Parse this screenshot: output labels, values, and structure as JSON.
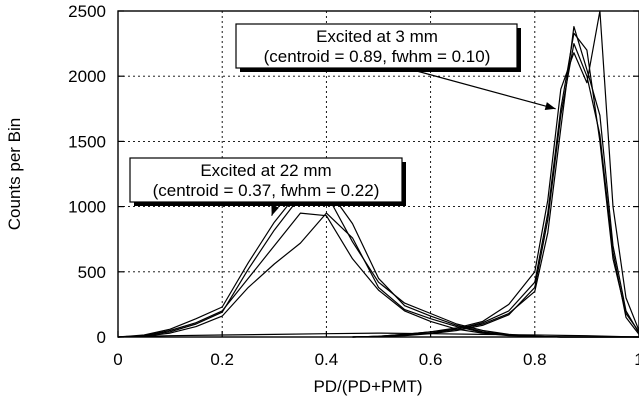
{
  "chart_data": {
    "type": "line",
    "xlabel": "PD/(PD+PMT)",
    "ylabel": "Counts per Bin",
    "xlim": [
      0,
      1
    ],
    "ylim": [
      0,
      2500
    ],
    "x_ticks": [
      "0",
      "0.2",
      "0.4",
      "0.6",
      "0.8",
      "1"
    ],
    "y_ticks": [
      "0",
      "500",
      "1000",
      "1500",
      "2000",
      "2500"
    ],
    "grid": "dotted",
    "series_22mm": [
      {
        "x": [
          0,
          0.05,
          0.1,
          0.15,
          0.2,
          0.25,
          0.3,
          0.35,
          0.4,
          0.45,
          0.5,
          0.55,
          0.6,
          0.65,
          0.7,
          0.75,
          0.8,
          0.85,
          0.9,
          0.95,
          1
        ],
        "y": [
          0,
          10,
          50,
          110,
          200,
          450,
          700,
          950,
          930,
          600,
          360,
          200,
          120,
          60,
          30,
          10,
          5,
          0,
          0,
          0,
          0
        ]
      },
      {
        "x": [
          0,
          0.05,
          0.1,
          0.15,
          0.2,
          0.25,
          0.3,
          0.35,
          0.4,
          0.45,
          0.5,
          0.55,
          0.6,
          0.65,
          0.7,
          0.75,
          0.8,
          0.85,
          0.9,
          0.95,
          1
        ],
        "y": [
          0,
          15,
          60,
          140,
          230,
          570,
          880,
          1130,
          1100,
          730,
          420,
          260,
          180,
          100,
          50,
          20,
          5,
          0,
          0,
          0,
          0
        ]
      },
      {
        "x": [
          0,
          0.05,
          0.1,
          0.15,
          0.2,
          0.25,
          0.3,
          0.35,
          0.4,
          0.45,
          0.5,
          0.55,
          0.6,
          0.65,
          0.7,
          0.75,
          0.8,
          0.85,
          0.9,
          0.95,
          1
        ],
        "y": [
          0,
          10,
          40,
          100,
          190,
          520,
          820,
          1080,
          1150,
          870,
          450,
          240,
          160,
          90,
          40,
          15,
          5,
          0,
          0,
          0,
          0
        ]
      },
      {
        "x": [
          0,
          0.05,
          0.1,
          0.15,
          0.2,
          0.25,
          0.3,
          0.35,
          0.4,
          0.45,
          0.5,
          0.55,
          0.6,
          0.65,
          0.7,
          0.75,
          0.8,
          0.85,
          0.9,
          0.95,
          1
        ],
        "y": [
          0,
          5,
          30,
          80,
          160,
          380,
          560,
          720,
          950,
          760,
          380,
          210,
          140,
          80,
          35,
          15,
          5,
          0,
          0,
          0,
          0
        ]
      }
    ],
    "series_3mm": [
      {
        "x": [
          0.45,
          0.5,
          0.55,
          0.6,
          0.65,
          0.7,
          0.75,
          0.8,
          0.825,
          0.85,
          0.875,
          0.9,
          0.925,
          0.95,
          0.975,
          1
        ],
        "y": [
          0,
          5,
          20,
          40,
          60,
          100,
          180,
          350,
          800,
          1600,
          2380,
          2050,
          1700,
          700,
          200,
          30
        ]
      },
      {
        "x": [
          0.45,
          0.5,
          0.55,
          0.6,
          0.65,
          0.7,
          0.75,
          0.8,
          0.825,
          0.85,
          0.875,
          0.9,
          0.925,
          0.95,
          0.975,
          1
        ],
        "y": [
          0,
          5,
          15,
          30,
          60,
          110,
          200,
          420,
          950,
          1750,
          2330,
          2200,
          1500,
          600,
          180,
          40
        ]
      },
      {
        "x": [
          0.45,
          0.5,
          0.55,
          0.6,
          0.65,
          0.7,
          0.75,
          0.8,
          0.825,
          0.85,
          0.875,
          0.9,
          0.925,
          0.95,
          0.975,
          1
        ],
        "y": [
          0,
          5,
          10,
          25,
          50,
          90,
          170,
          380,
          900,
          1700,
          2250,
          2000,
          1550,
          650,
          150,
          20
        ]
      },
      {
        "x": [
          0.45,
          0.5,
          0.55,
          0.6,
          0.65,
          0.7,
          0.75,
          0.8,
          0.825,
          0.85,
          0.875,
          0.9,
          0.925,
          0.95,
          0.975,
          1
        ],
        "y": [
          0,
          5,
          20,
          40,
          70,
          120,
          250,
          500,
          1050,
          1900,
          2180,
          1950,
          2500,
          1000,
          300,
          50
        ]
      }
    ],
    "baseline": {
      "x": [
        0,
        0.1,
        0.2,
        0.3,
        0.4,
        0.5,
        0.6,
        0.7,
        0.8,
        0.9,
        1
      ],
      "y": [
        0,
        10,
        15,
        20,
        25,
        30,
        25,
        20,
        15,
        10,
        0
      ]
    },
    "annotations": [
      {
        "lines": [
          "Excited at 3 mm",
          "(centroid = 0.89, fwhm = 0.10)"
        ],
        "points_to": [
          0.84,
          1750
        ]
      },
      {
        "lines": [
          "Excited at 22 mm",
          "(centroid = 0.37, fwhm = 0.22)"
        ],
        "points_to": [
          0.295,
          930
        ]
      }
    ]
  }
}
